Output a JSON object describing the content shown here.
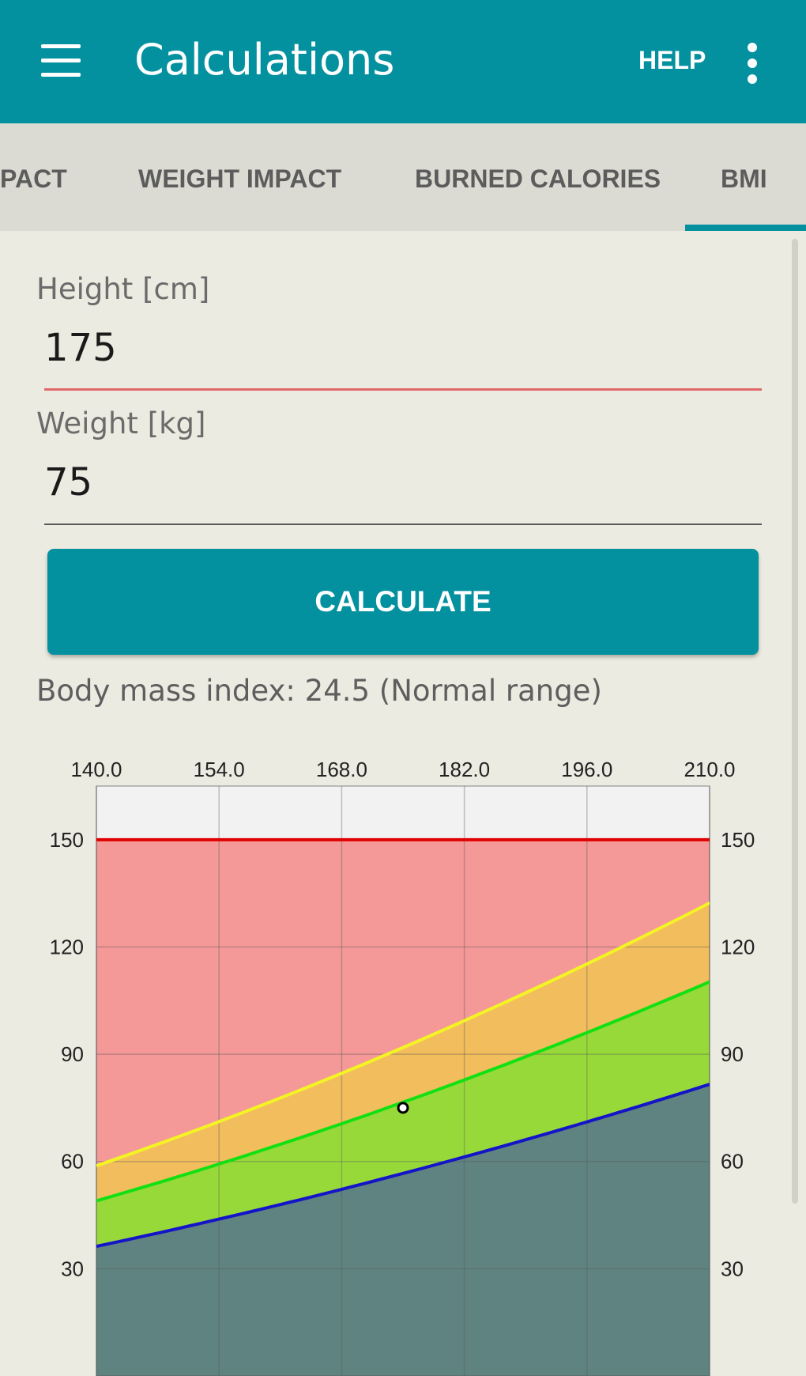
{
  "appbar": {
    "title": "Calculations",
    "help_label": "HELP",
    "accent_color": "#04919f",
    "menu_icon": "hamburger-menu-icon",
    "more_icon": "more-vert-icon"
  },
  "tabs": [
    {
      "label": "PACT",
      "selected": false
    },
    {
      "label": "WEIGHT IMPACT",
      "selected": false
    },
    {
      "label": "BURNED CALORIES",
      "selected": false
    },
    {
      "label": "BMI",
      "selected": true
    }
  ],
  "form": {
    "height_label": "Height [cm]",
    "height_value": "175",
    "weight_label": "Weight [kg]",
    "weight_value": "75",
    "calculate_label": "CALCULATE"
  },
  "result_text": "Body mass index: 24.5 (Normal range)",
  "chart_data": {
    "type": "area",
    "x_ticks": [
      "140.0",
      "154.0",
      "168.0",
      "182.0",
      "196.0",
      "210.0"
    ],
    "y_ticks": [
      "30",
      "60",
      "90",
      "120",
      "150"
    ],
    "xlim": [
      140,
      210
    ],
    "ylim": [
      0,
      165
    ],
    "grid": true,
    "max_line": {
      "value": 150,
      "color": "#e00000"
    },
    "series": [
      {
        "bmi": 18.5,
        "color": "#1414c8",
        "fill": "#5f8380"
      },
      {
        "bmi": 25,
        "color": "#12e012",
        "fill": "#98d93a"
      },
      {
        "bmi": 30,
        "color": "#f4f424",
        "fill": "#f2bd5c"
      }
    ],
    "above_fill": "#f59898",
    "top_band_fill": "#f2f2f2",
    "marker": {
      "height": 175,
      "weight": 75
    }
  }
}
